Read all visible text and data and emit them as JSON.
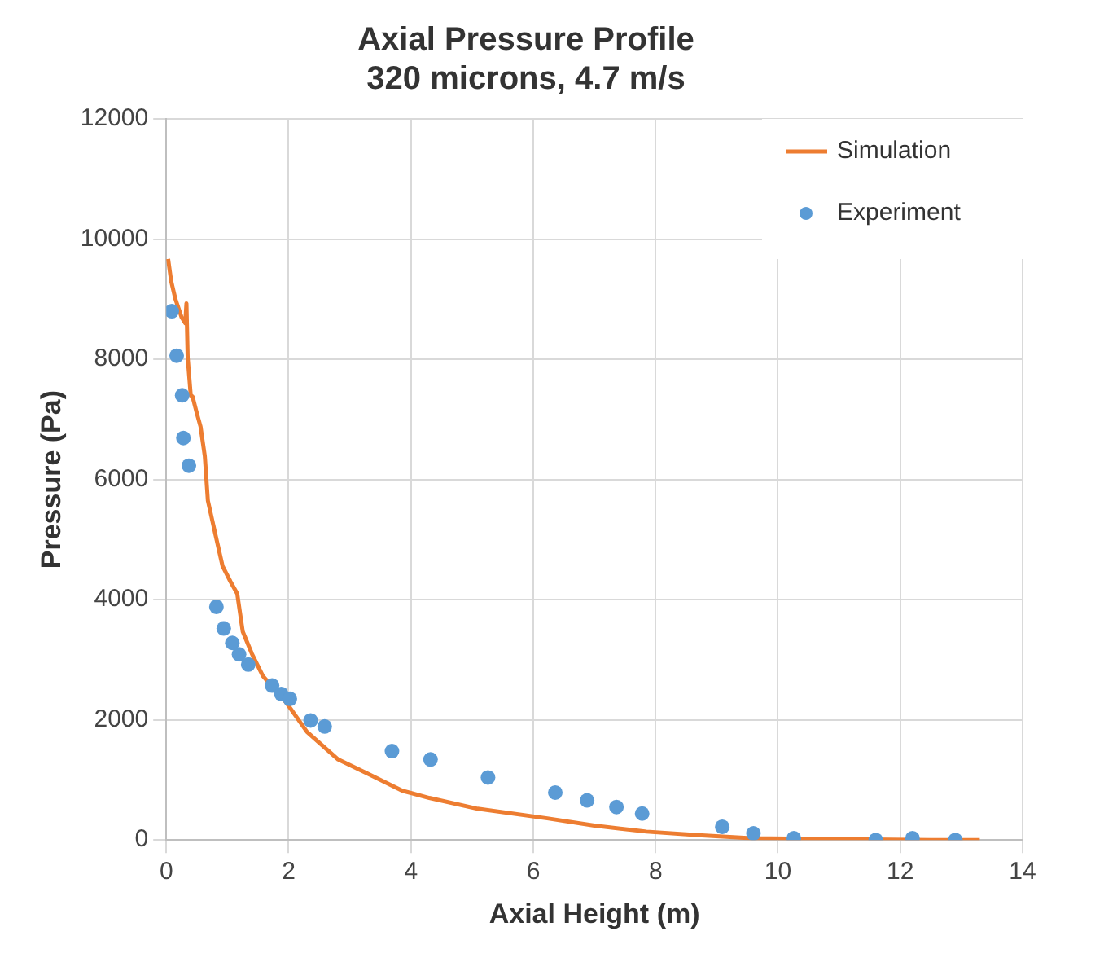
{
  "chart_data": {
    "type": "line",
    "title": [
      "Axial Pressure Profile",
      "320 microns, 4.7 m/s"
    ],
    "xlabel": "Axial Height (m)",
    "ylabel": "Pressure (Pa)",
    "xlim": [
      0,
      14
    ],
    "xticks": [
      0,
      2,
      4,
      6,
      8,
      10,
      12,
      14
    ],
    "ylim": [
      0,
      12000
    ],
    "yticks": [
      0,
      2000,
      4000,
      6000,
      8000,
      10000,
      12000
    ],
    "grid": true,
    "legend": "top right",
    "series": [
      {
        "name": "Simulation",
        "type": "line",
        "color": "#ed7d31",
        "marker": "none",
        "x": [
          0.03,
          0.08,
          0.15,
          0.25,
          0.31,
          0.33,
          0.35,
          0.4,
          0.43,
          0.5,
          0.56,
          0.63,
          0.68,
          0.8,
          0.92,
          1.05,
          1.16,
          1.25,
          1.4,
          1.58,
          1.96,
          2.3,
          2.81,
          3.3,
          3.86,
          4.3,
          5.09,
          6.23,
          7.0,
          7.85,
          8.7,
          9.56,
          10.5,
          11.5,
          12.5,
          13.3
        ],
        "values": [
          9670,
          9300,
          9000,
          8700,
          8600,
          8930,
          8030,
          7400,
          7380,
          7100,
          6880,
          6390,
          5650,
          5100,
          4560,
          4300,
          4100,
          3470,
          3100,
          2730,
          2290,
          1800,
          1340,
          1100,
          820,
          700,
          520,
          360,
          240,
          140,
          80,
          30,
          20,
          10,
          0,
          0
        ]
      },
      {
        "name": "Experiment",
        "type": "scatter",
        "color": "#5b9bd5",
        "marker": "circle",
        "x": [
          0.09,
          0.17,
          0.26,
          0.28,
          0.37,
          0.82,
          0.94,
          1.08,
          1.19,
          1.34,
          1.73,
          1.88,
          2.02,
          2.36,
          2.59,
          3.69,
          4.32,
          5.26,
          6.36,
          6.88,
          7.36,
          7.78,
          9.09,
          9.6,
          10.26,
          11.6,
          12.2,
          12.9
        ],
        "values": [
          8800,
          8060,
          7400,
          6690,
          6230,
          3880,
          3520,
          3280,
          3090,
          2920,
          2570,
          2430,
          2350,
          1990,
          1890,
          1480,
          1340,
          1040,
          790,
          660,
          550,
          440,
          220,
          110,
          30,
          0,
          30,
          0
        ]
      }
    ]
  }
}
